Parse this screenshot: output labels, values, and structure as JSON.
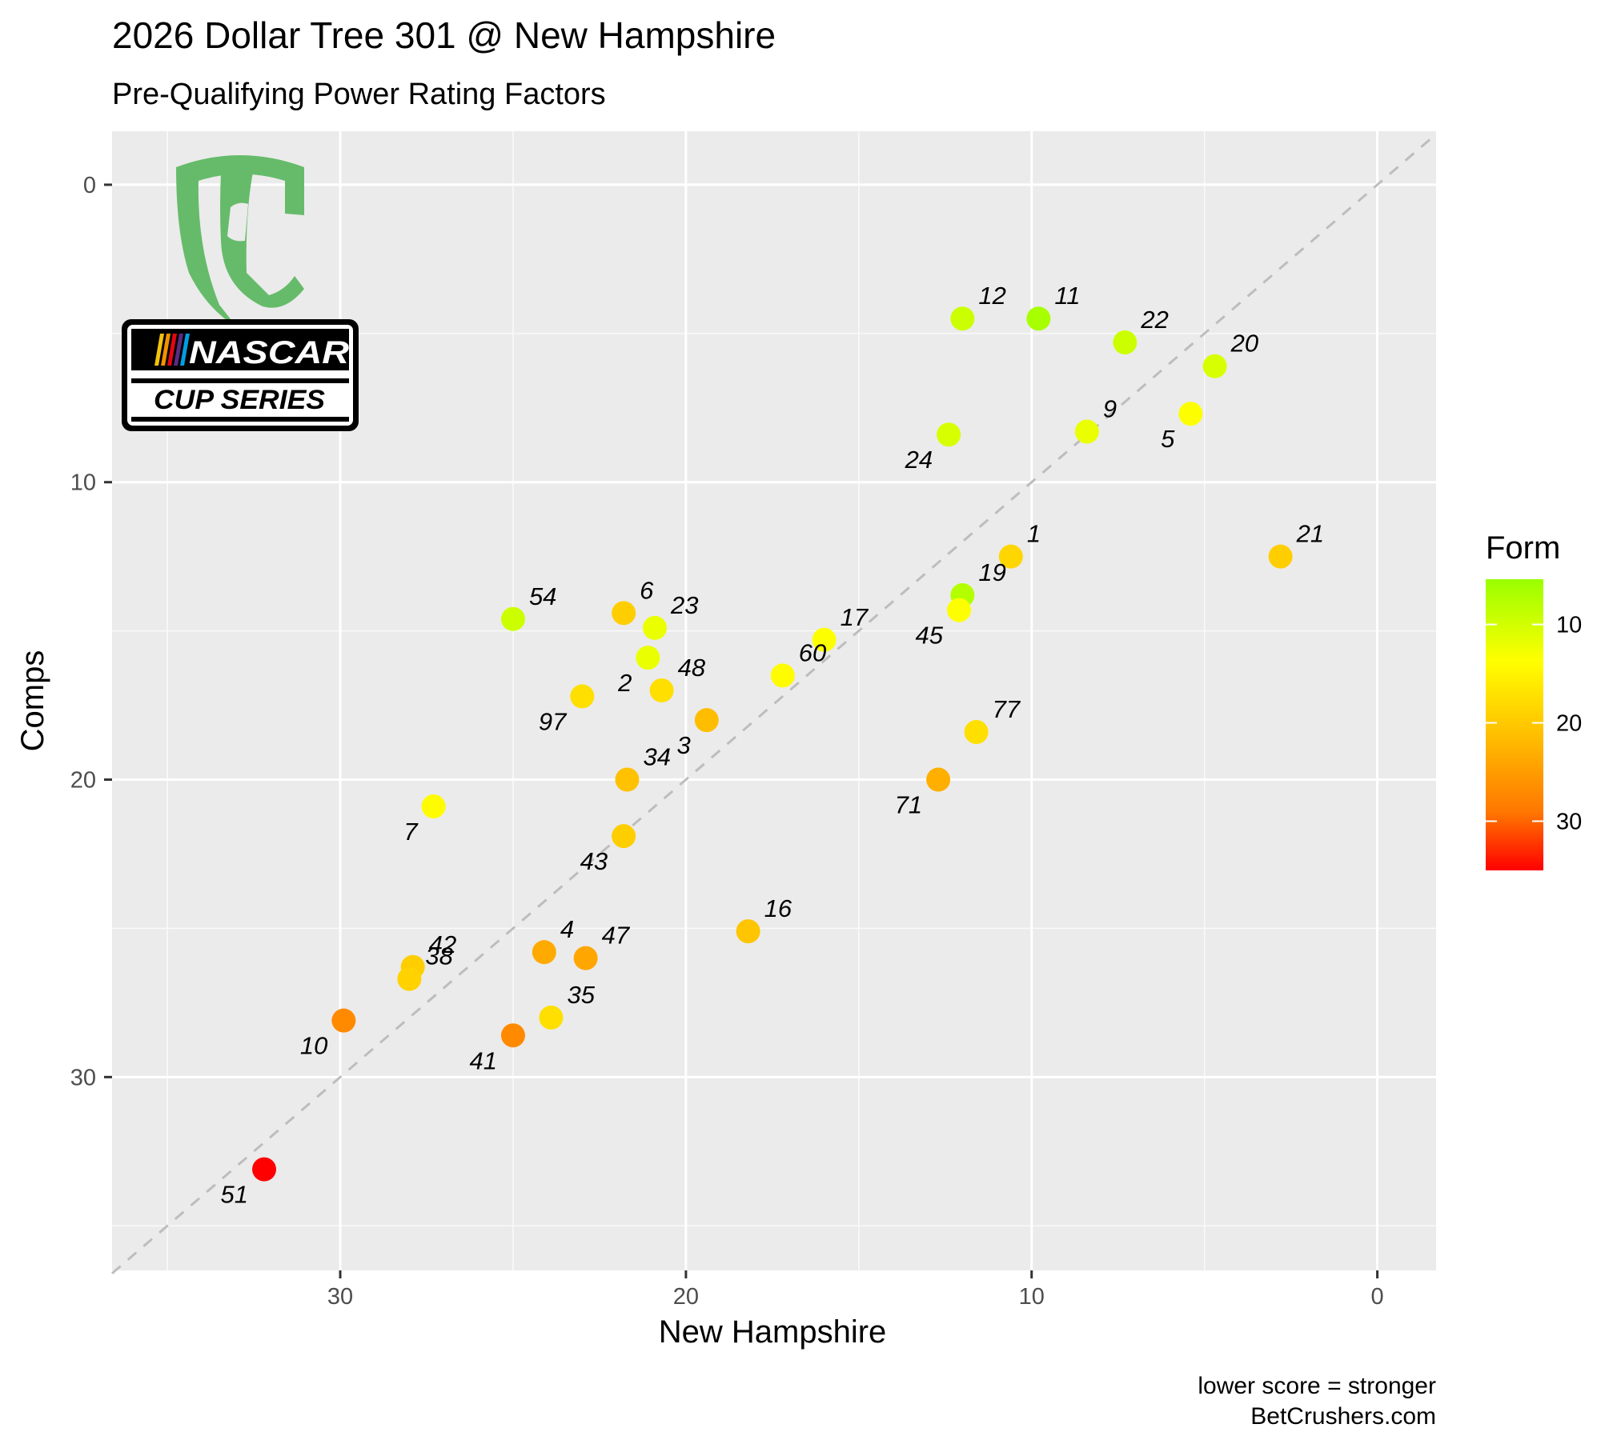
{
  "chart_data": {
    "type": "scatter",
    "title": "2026 Dollar Tree 301 @ New Hampshire",
    "subtitle": "Pre-Qualifying Power Rating Factors",
    "xlabel": "New Hampshire",
    "ylabel": "Comps",
    "x_reversed": true,
    "y_reversed": true,
    "xlim": [
      36.6,
      -1.7
    ],
    "ylim": [
      -1.8,
      36.5
    ],
    "x_ticks": [
      30,
      20,
      10,
      0
    ],
    "y_ticks": [
      0,
      10,
      20,
      30
    ],
    "reference_line": "y = x (dashed)",
    "grid": true,
    "legend": {
      "title": "Form",
      "position": "right",
      "ticks": [
        10,
        20,
        30
      ],
      "range": [
        5.4,
        35
      ],
      "color_low": "#99ff00",
      "color_mid": "#ffff00",
      "color_high": "#ff0000"
    },
    "caption": [
      "lower score = stronger",
      "BetCrushers.com"
    ],
    "logos": [
      "BC",
      "NASCAR",
      "CUP SERIES"
    ],
    "points": [
      {
        "label": "12",
        "x": 12.0,
        "y": 4.5,
        "form": 9.5
      },
      {
        "label": "11",
        "x": 9.8,
        "y": 4.5,
        "form": 6.5
      },
      {
        "label": "22",
        "x": 7.3,
        "y": 5.3,
        "form": 9.5
      },
      {
        "label": "20",
        "x": 4.7,
        "y": 6.1,
        "form": 10.5
      },
      {
        "label": "9",
        "x": 8.4,
        "y": 8.3,
        "form": 12
      },
      {
        "label": "5",
        "x": 5.4,
        "y": 7.7,
        "form": 13.5
      },
      {
        "label": "24",
        "x": 12.4,
        "y": 8.4,
        "form": 10.5
      },
      {
        "label": "1",
        "x": 10.6,
        "y": 12.5,
        "form": 18.5
      },
      {
        "label": "21",
        "x": 2.8,
        "y": 12.5,
        "form": 19.5
      },
      {
        "label": "19",
        "x": 12.0,
        "y": 13.8,
        "form": 7.5
      },
      {
        "label": "45",
        "x": 12.1,
        "y": 14.3,
        "form": 13.5
      },
      {
        "label": "54",
        "x": 25.0,
        "y": 14.6,
        "form": 9.5
      },
      {
        "label": "6",
        "x": 21.8,
        "y": 14.4,
        "form": 19.5
      },
      {
        "label": "23",
        "x": 20.9,
        "y": 14.9,
        "form": 12
      },
      {
        "label": "17",
        "x": 16.0,
        "y": 15.3,
        "form": 13.5
      },
      {
        "label": "2",
        "x": 21.1,
        "y": 15.9,
        "form": 12
      },
      {
        "label": "60",
        "x": 17.2,
        "y": 16.5,
        "form": 14
      },
      {
        "label": "48",
        "x": 20.7,
        "y": 17.0,
        "form": 17.5
      },
      {
        "label": "97",
        "x": 23.0,
        "y": 17.2,
        "form": 17.5
      },
      {
        "label": "3",
        "x": 19.4,
        "y": 18.0,
        "form": 21.5
      },
      {
        "label": "77",
        "x": 11.6,
        "y": 18.4,
        "form": 17.5
      },
      {
        "label": "34",
        "x": 21.7,
        "y": 20.0,
        "form": 21
      },
      {
        "label": "71",
        "x": 12.7,
        "y": 20.0,
        "form": 23
      },
      {
        "label": "7",
        "x": 27.3,
        "y": 20.9,
        "form": 14
      },
      {
        "label": "43",
        "x": 21.8,
        "y": 21.9,
        "form": 19.5
      },
      {
        "label": "16",
        "x": 18.2,
        "y": 25.1,
        "form": 20.5
      },
      {
        "label": "4",
        "x": 24.1,
        "y": 25.8,
        "form": 23.5
      },
      {
        "label": "47",
        "x": 22.9,
        "y": 26.0,
        "form": 24
      },
      {
        "label": "42",
        "x": 27.9,
        "y": 26.3,
        "form": 19.5
      },
      {
        "label": "38",
        "x": 28.0,
        "y": 26.7,
        "form": 19
      },
      {
        "label": "35",
        "x": 23.9,
        "y": 28.0,
        "form": 17.5
      },
      {
        "label": "10",
        "x": 29.9,
        "y": 28.1,
        "form": 27
      },
      {
        "label": "41",
        "x": 25.0,
        "y": 28.6,
        "form": 27
      },
      {
        "label": "51",
        "x": 32.2,
        "y": 33.1,
        "form": 35
      }
    ]
  }
}
